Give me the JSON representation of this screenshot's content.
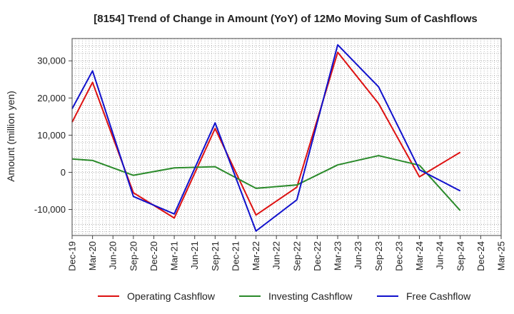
{
  "chart_data": {
    "type": "line",
    "title": "[8154]  Trend of Change in Amount (YoY) of 12Mo Moving Sum of Cashflows",
    "xlabel": "",
    "ylabel": "Amount (million yen)",
    "categories": [
      "Dec-19",
      "Mar-20",
      "Jun-20",
      "Sep-20",
      "Dec-20",
      "Mar-21",
      "Jun-21",
      "Sep-21",
      "Dec-21",
      "Mar-22",
      "Jun-22",
      "Sep-22",
      "Dec-22",
      "Mar-23",
      "Jun-23",
      "Sep-23",
      "Dec-23",
      "Mar-24",
      "Jun-24",
      "Sep-24",
      "Dec-24",
      "Mar-25"
    ],
    "ylim": [
      -17000,
      36000
    ],
    "yticks": [
      -10000,
      0,
      10000,
      20000,
      30000
    ],
    "ytick_labels": [
      "-10,000",
      "0",
      "10,000",
      "20,000",
      "30,000"
    ],
    "grid": true,
    "legend_position": "bottom",
    "series": [
      {
        "name": "Operating Cashflow",
        "color": "#dd1111",
        "values": [
          13500,
          24200,
          null,
          -5500,
          null,
          -12300,
          null,
          11800,
          null,
          -11500,
          null,
          -4000,
          null,
          32300,
          null,
          18500,
          null,
          -1200,
          null,
          5400,
          null,
          null
        ]
      },
      {
        "name": "Investing Cashflow",
        "color": "#2a8a2a",
        "values": [
          3600,
          3200,
          null,
          -800,
          null,
          1200,
          null,
          1500,
          null,
          -4300,
          null,
          -3400,
          null,
          2000,
          null,
          4500,
          null,
          1900,
          null,
          -10300,
          null,
          null
        ]
      },
      {
        "name": "Free Cashflow",
        "color": "#1111cc",
        "values": [
          17100,
          27300,
          null,
          -6500,
          null,
          -11200,
          null,
          13300,
          null,
          -15800,
          null,
          -7400,
          null,
          34300,
          null,
          23000,
          null,
          700,
          null,
          -5000,
          null,
          null
        ]
      }
    ]
  }
}
